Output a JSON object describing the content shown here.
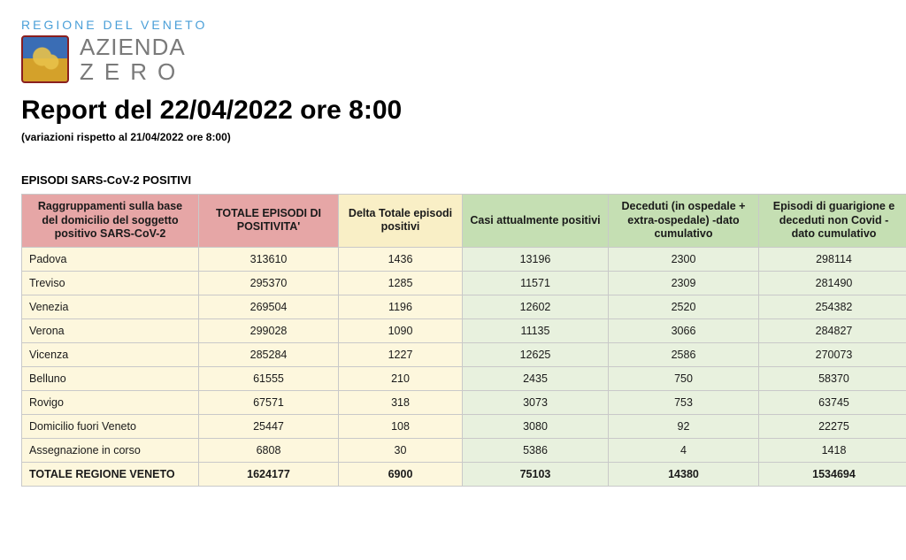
{
  "header": {
    "region_label": "REGIONE DEL VENETO",
    "logo_line1": "AZIENDA",
    "logo_line2": "ZERO",
    "report_title": "Report del 22/04/2022 ore 8:00",
    "report_subtitle": "(variazioni rispetto al 21/04/2022 ore 8:00)"
  },
  "section": {
    "title": "EPISODI SARS-CoV-2 POSITIVI"
  },
  "table": {
    "columns": [
      "Raggruppamenti sulla base del domicilio del soggetto positivo SARS-CoV-2",
      "TOTALE EPISODI DI POSITIVITA'",
      "Delta Totale episodi positivi",
      "Casi attualmente positivi",
      "Deceduti (in ospedale + extra-ospedale) -dato cumulativo",
      "Episodi di guarigione e deceduti non Covid - dato cumulativo"
    ],
    "column_groups": [
      "label",
      "pink",
      "yel",
      "grn",
      "grn",
      "grn"
    ],
    "column_widths": [
      "w0",
      "w1",
      "w2",
      "w3",
      "w4",
      "w5"
    ],
    "header_bg": {
      "label": "#e6a6a6",
      "pink": "#e6a6a6",
      "yel": "#f9efc6",
      "grn": "#c5dfb3"
    },
    "body_bg": {
      "label": "#fdf7dd",
      "pink": "#fdf7dd",
      "yel": "#fdf7dd",
      "grn": "#e8f1de"
    },
    "border_color": "#c9c9c9",
    "rows": [
      {
        "label": "Padova",
        "v": [
          "313610",
          "1436",
          "13196",
          "2300",
          "298114"
        ],
        "total": false
      },
      {
        "label": "Treviso",
        "v": [
          "295370",
          "1285",
          "11571",
          "2309",
          "281490"
        ],
        "total": false
      },
      {
        "label": "Venezia",
        "v": [
          "269504",
          "1196",
          "12602",
          "2520",
          "254382"
        ],
        "total": false
      },
      {
        "label": "Verona",
        "v": [
          "299028",
          "1090",
          "11135",
          "3066",
          "284827"
        ],
        "total": false
      },
      {
        "label": "Vicenza",
        "v": [
          "285284",
          "1227",
          "12625",
          "2586",
          "270073"
        ],
        "total": false
      },
      {
        "label": "Belluno",
        "v": [
          "61555",
          "210",
          "2435",
          "750",
          "58370"
        ],
        "total": false
      },
      {
        "label": "Rovigo",
        "v": [
          "67571",
          "318",
          "3073",
          "753",
          "63745"
        ],
        "total": false
      },
      {
        "label": "Domicilio fuori Veneto",
        "v": [
          "25447",
          "108",
          "3080",
          "92",
          "22275"
        ],
        "total": false
      },
      {
        "label": "Assegnazione in corso",
        "v": [
          "6808",
          "30",
          "5386",
          "4",
          "1418"
        ],
        "total": false
      },
      {
        "label": "TOTALE REGIONE VENETO",
        "v": [
          "1624177",
          "6900",
          "75103",
          "14380",
          "1534694"
        ],
        "total": true
      }
    ]
  }
}
